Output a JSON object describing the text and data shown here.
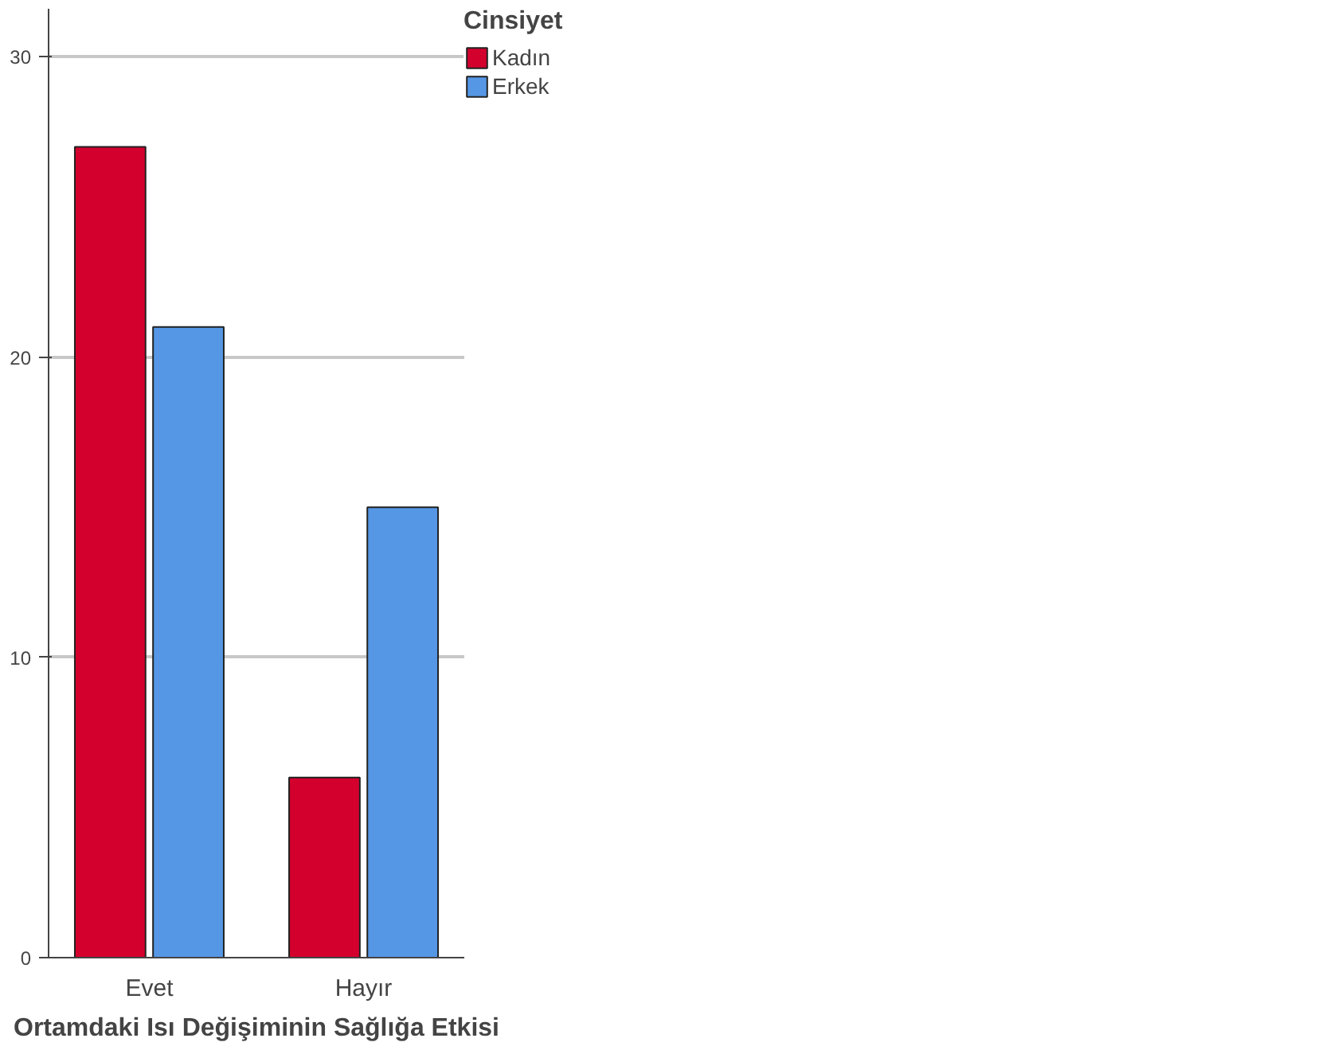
{
  "chart_data": {
    "type": "bar",
    "xlabel": "Ortamdaki Isı Değişiminin Sağlığa Etkisi",
    "legend_title": "Cinsiyet",
    "categories": [
      "Evet",
      "Hayır"
    ],
    "series": [
      {
        "name": "Kadın",
        "color": "#d3002d",
        "values": [
          27,
          6
        ]
      },
      {
        "name": "Erkek",
        "color": "#5597e5",
        "values": [
          21,
          15
        ]
      }
    ],
    "ylim": [
      0,
      31.6
    ],
    "yticks": [
      0,
      10,
      20,
      30
    ],
    "grid": "y",
    "legend": "top right"
  }
}
